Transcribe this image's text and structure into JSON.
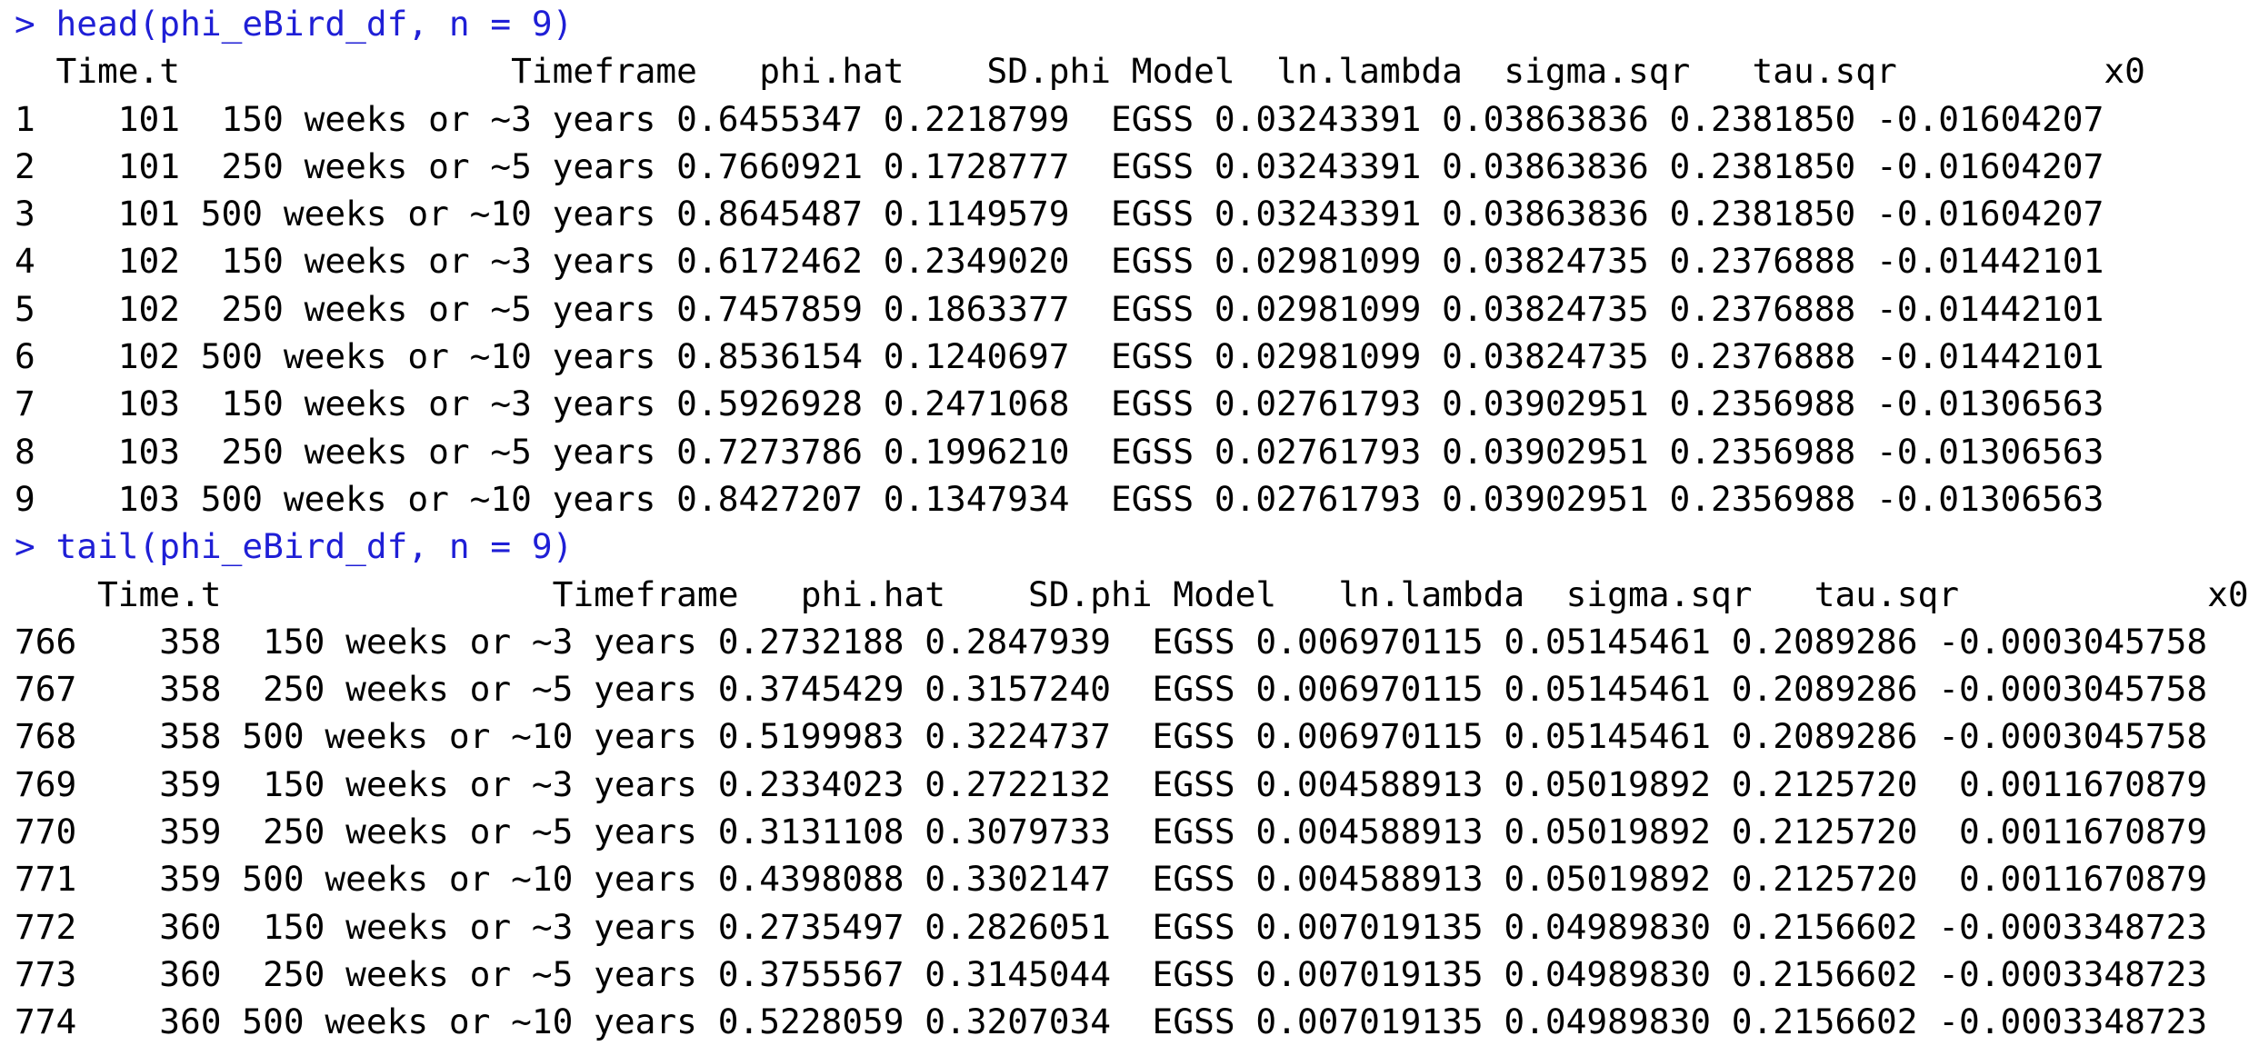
{
  "console": {
    "colors": {
      "command": "#1f1fd6",
      "output": "#000000",
      "background": "#ffffff"
    },
    "blocks": [
      {
        "prompt": ">",
        "command": "head(phi_eBird_df, n = 9)",
        "header": "  Time.t                Timeframe   phi.hat    SD.phi Model  ln.lambda  sigma.sqr   tau.sqr          x0",
        "rows": [
          "1    101  150 weeks or ~3 years 0.6455347 0.2218799  EGSS 0.03243391 0.03863836 0.2381850 -0.01604207",
          "2    101  250 weeks or ~5 years 0.7660921 0.1728777  EGSS 0.03243391 0.03863836 0.2381850 -0.01604207",
          "3    101 500 weeks or ~10 years 0.8645487 0.1149579  EGSS 0.03243391 0.03863836 0.2381850 -0.01604207",
          "4    102  150 weeks or ~3 years 0.6172462 0.2349020  EGSS 0.02981099 0.03824735 0.2376888 -0.01442101",
          "5    102  250 weeks or ~5 years 0.7457859 0.1863377  EGSS 0.02981099 0.03824735 0.2376888 -0.01442101",
          "6    102 500 weeks or ~10 years 0.8536154 0.1240697  EGSS 0.02981099 0.03824735 0.2376888 -0.01442101",
          "7    103  150 weeks or ~3 years 0.5926928 0.2471068  EGSS 0.02761793 0.03902951 0.2356988 -0.01306563",
          "8    103  250 weeks or ~5 years 0.7273786 0.1996210  EGSS 0.02761793 0.03902951 0.2356988 -0.01306563",
          "9    103 500 weeks or ~10 years 0.8427207 0.1347934  EGSS 0.02761793 0.03902951 0.2356988 -0.01306563"
        ]
      },
      {
        "prompt": ">",
        "command": "tail(phi_eBird_df, n = 9)",
        "header": "    Time.t                Timeframe   phi.hat    SD.phi Model   ln.lambda  sigma.sqr   tau.sqr            x0",
        "rows": [
          "766    358  150 weeks or ~3 years 0.2732188 0.2847939  EGSS 0.006970115 0.05145461 0.2089286 -0.0003045758",
          "767    358  250 weeks or ~5 years 0.3745429 0.3157240  EGSS 0.006970115 0.05145461 0.2089286 -0.0003045758",
          "768    358 500 weeks or ~10 years 0.5199983 0.3224737  EGSS 0.006970115 0.05145461 0.2089286 -0.0003045758",
          "769    359  150 weeks or ~3 years 0.2334023 0.2722132  EGSS 0.004588913 0.05019892 0.2125720  0.0011670879",
          "770    359  250 weeks or ~5 years 0.3131108 0.3079733  EGSS 0.004588913 0.05019892 0.2125720  0.0011670879",
          "771    359 500 weeks or ~10 years 0.4398088 0.3302147  EGSS 0.004588913 0.05019892 0.2125720  0.0011670879",
          "772    360  150 weeks or ~3 years 0.2735497 0.2826051  EGSS 0.007019135 0.04989830 0.2156602 -0.0003348723",
          "773    360  250 weeks or ~5 years 0.3755567 0.3145044  EGSS 0.007019135 0.04989830 0.2156602 -0.0003348723",
          "774    360 500 weeks or ~10 years 0.5228059 0.3207034  EGSS 0.007019135 0.04989830 0.2156602 -0.0003348723"
        ]
      }
    ]
  }
}
